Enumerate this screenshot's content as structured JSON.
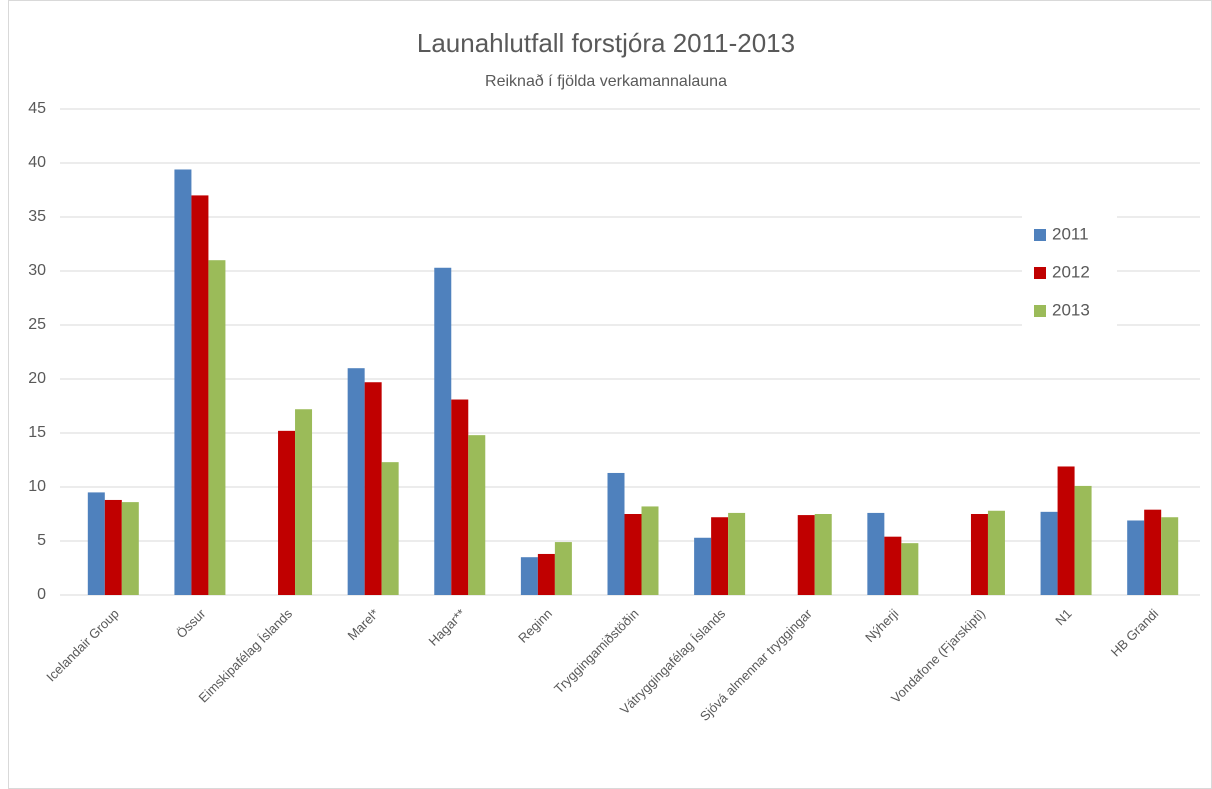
{
  "chart_data": {
    "type": "bar",
    "title": "Launahlutfall forstjóra 2011-2013",
    "subtitle": "Reiknað í fjölda verkamannalauna",
    "categories": [
      "Icelandair Group",
      "Össur",
      "Eimskipafélag Íslands",
      "Marel*",
      "Hagar**",
      "Reginn",
      "Tryggingamiðstöðin",
      "Vátryggingafélag Íslands",
      "Sjóvá almennar tryggingar",
      "Nýherji",
      "Vondafone (Fjarskipti)",
      "N1",
      "HB Grandi"
    ],
    "series": [
      {
        "name": "2011",
        "color": "#4f81bd",
        "values": [
          9.5,
          39.4,
          null,
          21,
          30.3,
          3.5,
          11.3,
          5.3,
          null,
          7.6,
          null,
          7.7,
          6.9
        ]
      },
      {
        "name": "2012",
        "color": "#c00000",
        "values": [
          8.8,
          37,
          15.2,
          19.7,
          18.1,
          3.8,
          7.5,
          7.2,
          7.4,
          5.4,
          7.5,
          11.9,
          7.9
        ]
      },
      {
        "name": "2013",
        "color": "#9bbb59",
        "values": [
          8.6,
          31,
          17.2,
          12.3,
          14.8,
          4.9,
          8.2,
          7.6,
          7.5,
          4.8,
          7.8,
          10.1,
          7.2
        ]
      }
    ],
    "ylim": [
      0,
      45
    ],
    "yticks": [
      0,
      5,
      10,
      15,
      20,
      25,
      30,
      35,
      40,
      45
    ],
    "grid": true,
    "legend": "right"
  }
}
